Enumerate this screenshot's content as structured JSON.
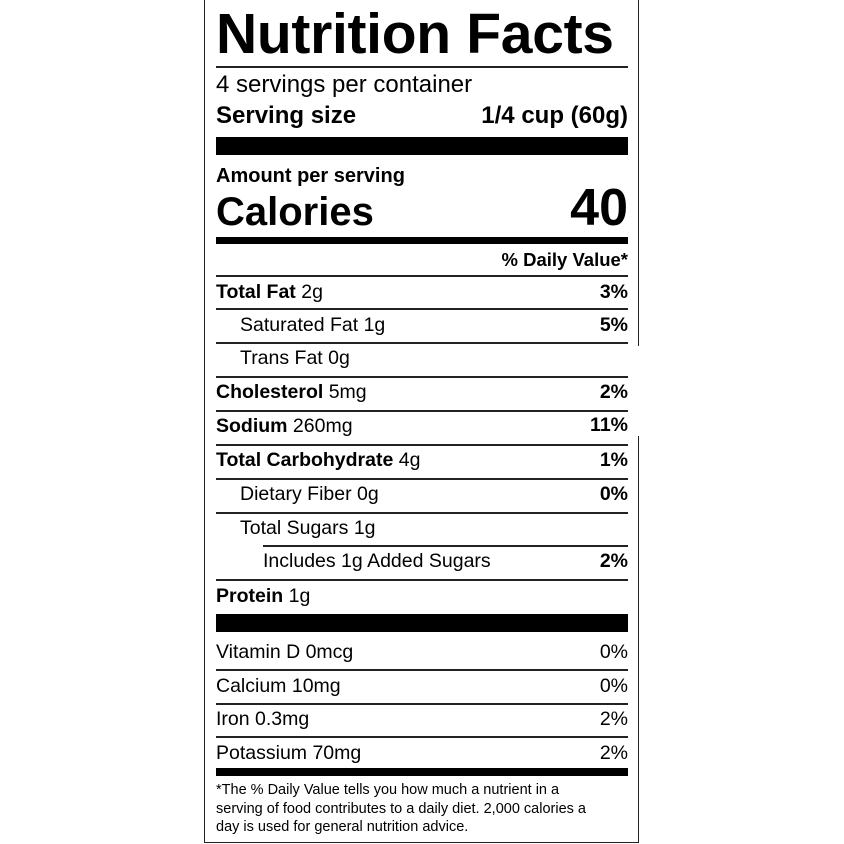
{
  "title": "Nutrition Facts",
  "servings_per_container": "4 servings per container",
  "serving_size_label": "Serving size",
  "serving_size_value": "1/4 cup (60g)",
  "amount_per_serving": "Amount per serving",
  "calories_label": "Calories",
  "calories_value": "40",
  "dv_header": "% Daily Value*",
  "nutrients": [
    {
      "name": "Total Fat",
      "amount": "2g",
      "dv": "3%"
    },
    {
      "name": "Saturated Fat",
      "amount": "1g",
      "dv": "5%"
    },
    {
      "name": "Trans Fat",
      "amount": "0g",
      "dv": ""
    },
    {
      "name": "Cholesterol",
      "amount": "5mg",
      "dv": "2%"
    },
    {
      "name": "Sodium",
      "amount": "260mg",
      "dv": "11%"
    },
    {
      "name": "Total Carbohydrate",
      "amount": "4g",
      "dv": "1%"
    },
    {
      "name": "Dietary Fiber",
      "amount": "0g",
      "dv": "0%"
    },
    {
      "name": "Total Sugars",
      "amount": "1g",
      "dv": ""
    },
    {
      "name": "Includes 1g Added Sugars",
      "amount": "",
      "dv": "2%"
    },
    {
      "name": "Protein",
      "amount": "1g",
      "dv": ""
    }
  ],
  "vitamins": [
    {
      "name": "Vitamin D 0mcg",
      "dv": "0%"
    },
    {
      "name": "Calcium 10mg",
      "dv": "0%"
    },
    {
      "name": "Iron 0.3mg",
      "dv": "2%"
    },
    {
      "name": "Potassium 70mg",
      "dv": "2%"
    }
  ],
  "footnote": [
    "*The % Daily Value tells you how much a nutrient in a",
    "serving of food contributes to a daily diet. 2,000 calories a",
    "day is used for general nutrition advice."
  ]
}
